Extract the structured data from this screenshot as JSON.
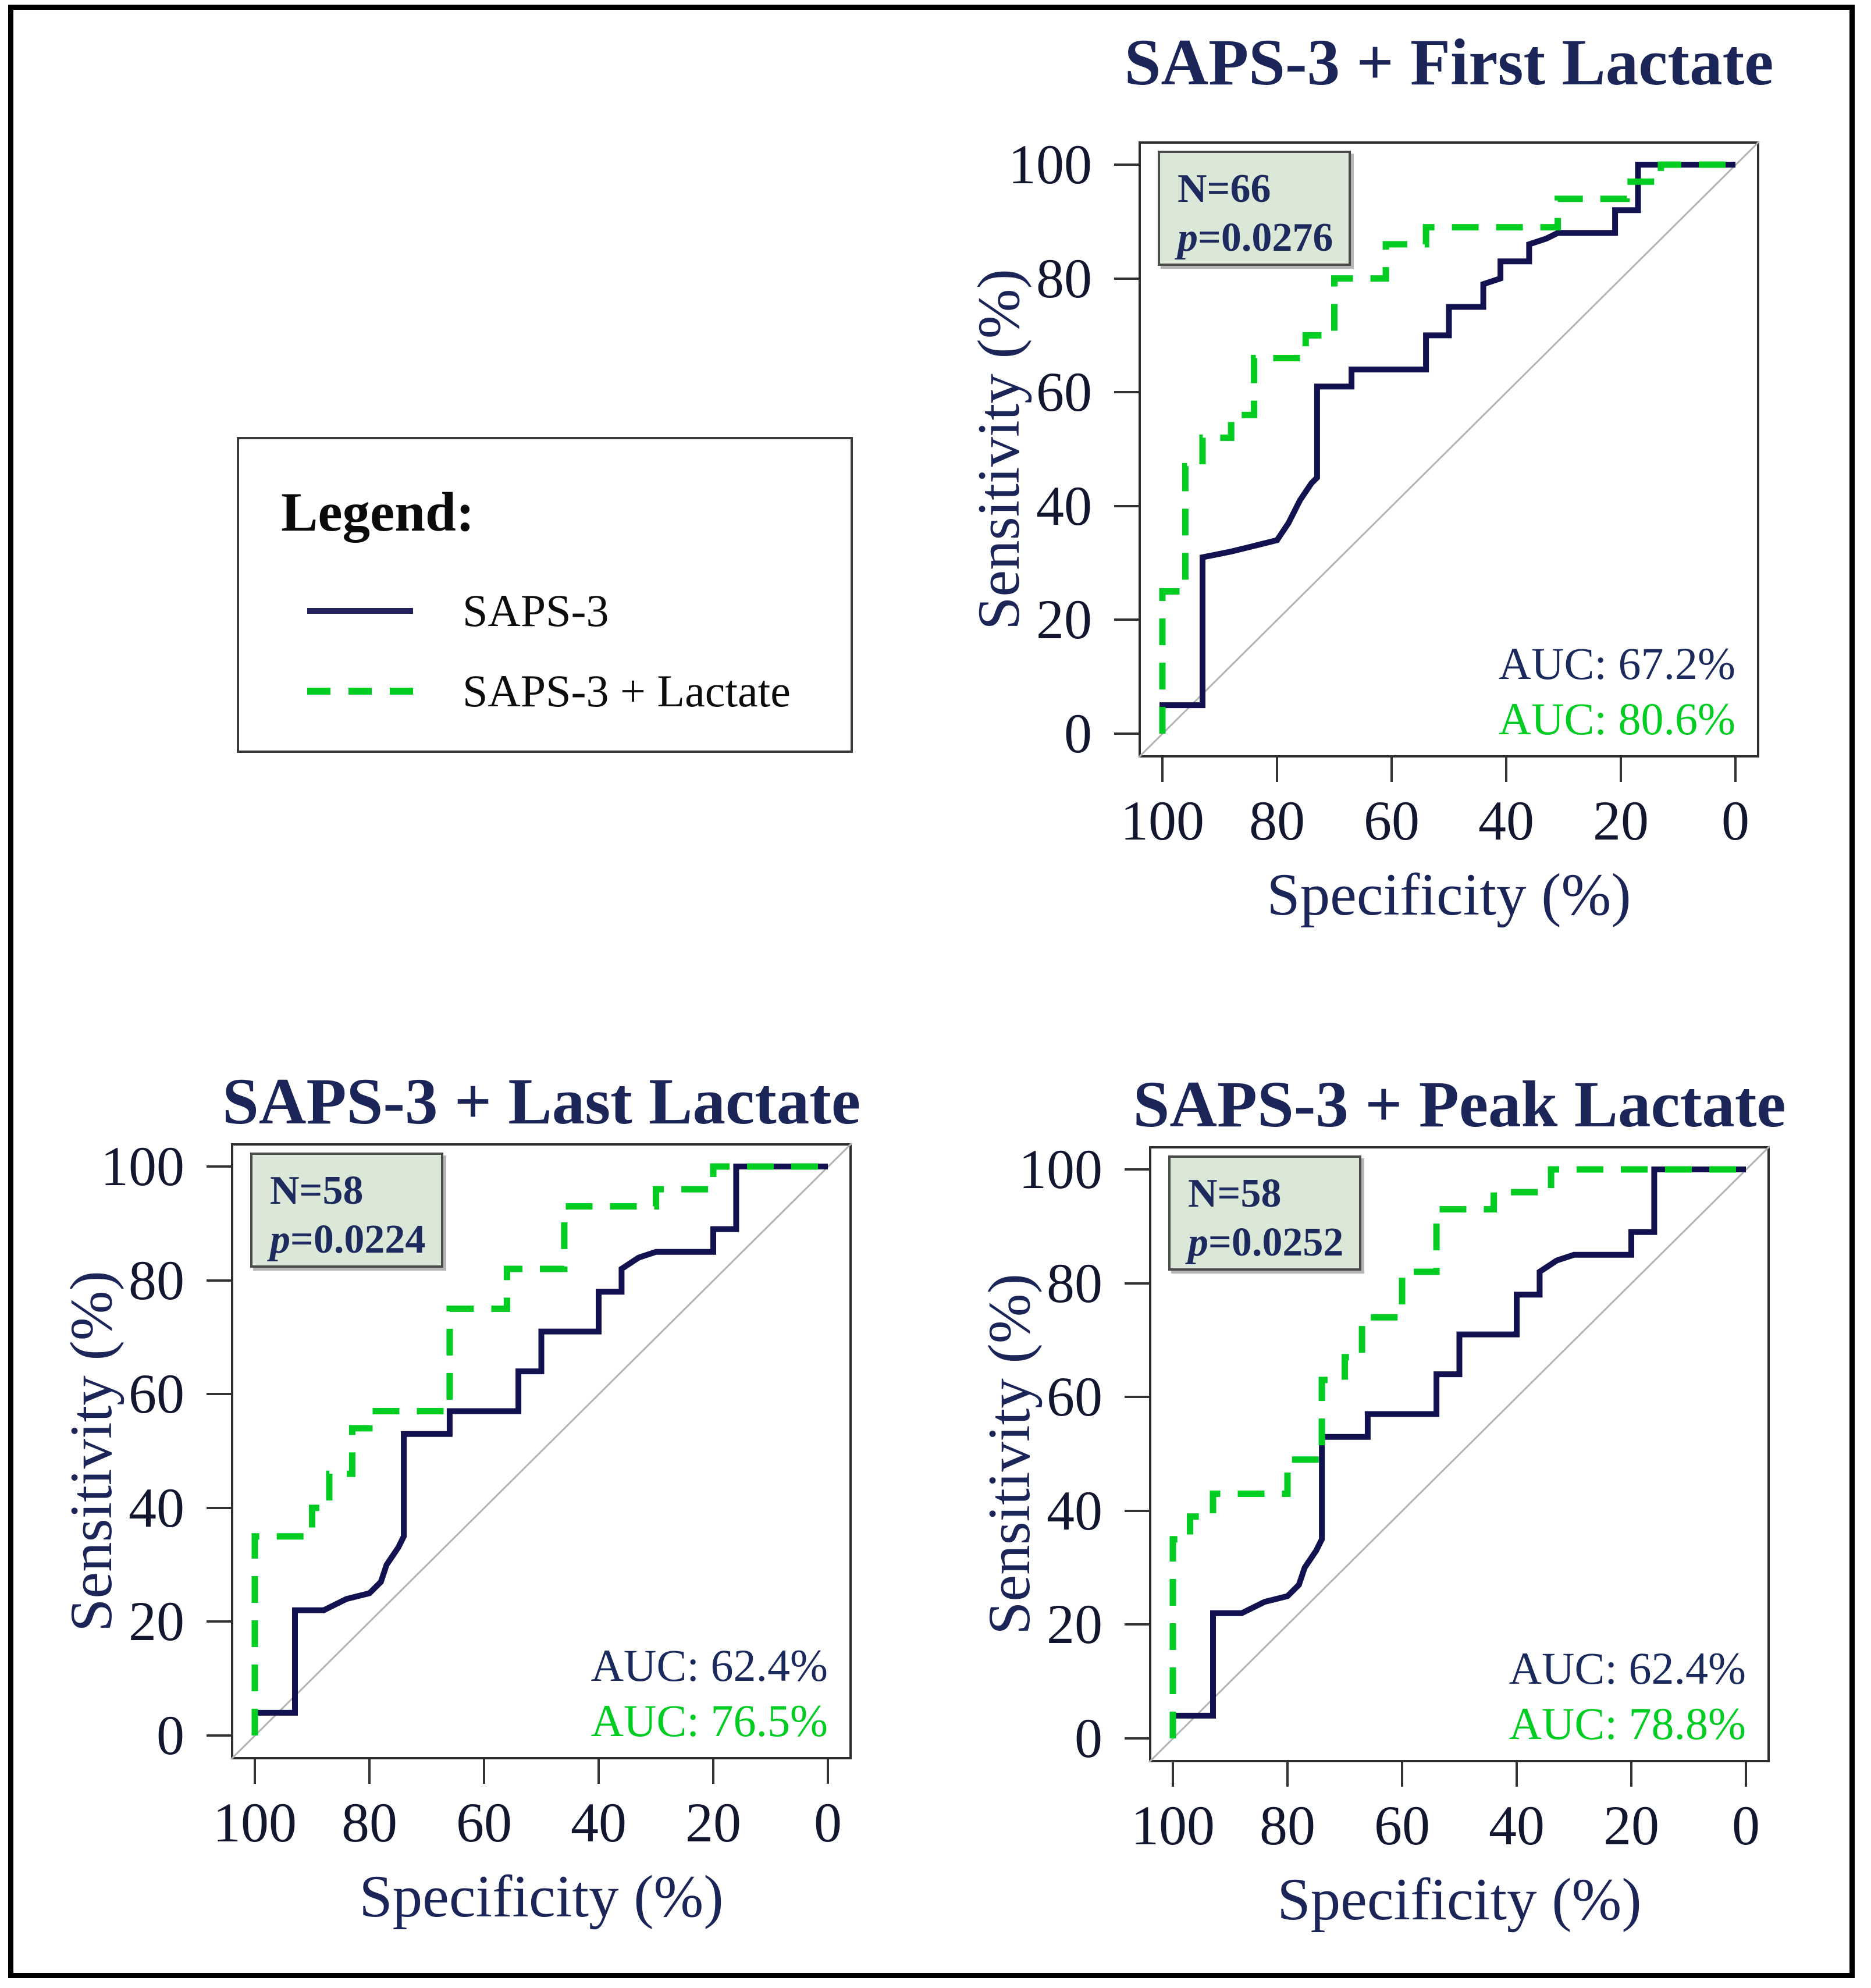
{
  "axes": {
    "x_label": "Specificity (%)",
    "y_label": "Sensitivity (%)",
    "x_ticks": [
      "100",
      "80",
      "60",
      "40",
      "20",
      "0"
    ],
    "y_ticks": [
      "0",
      "20",
      "40",
      "60",
      "80",
      "100"
    ],
    "x_range": [
      100,
      0
    ],
    "y_range": [
      0,
      100
    ],
    "x_orientation": "reversed, 100 at left",
    "grid": false,
    "diagonal_reference_line": true
  },
  "legend": {
    "title": "Legend:",
    "items": [
      {
        "label": "SAPS-3",
        "line": "solid",
        "color": "#121250"
      },
      {
        "label": "SAPS-3 + Lactate",
        "line": "dashed",
        "color": "#00cc22"
      }
    ]
  },
  "colors": {
    "saps3_line": "#121250",
    "lactate_line": "#00cc22",
    "title_text": "#1b2558",
    "tick_text": "#12162f",
    "stats_box_fill": "#dce8d7",
    "stats_box_border": "#4b4b4b",
    "stats_text": "#1c2a5e",
    "diagonal": "#b3b3b3",
    "plot_border": "#2e2e2e",
    "figure_border": "#000000"
  },
  "chart_data": [
    {
      "type": "line",
      "title": "SAPS-3 + First Lactate",
      "n_label": "N=66",
      "p_label": "p",
      "p_value": "=0.0276",
      "xlabel": "Specificity (%)",
      "ylabel": "Sensitivity (%)",
      "auc": [
        {
          "name": "SAPS-3",
          "label": "AUC: 67.2%",
          "color": "#1b2a5c"
        },
        {
          "name": "SAPS-3 + Lactate",
          "label": "AUC: 80.6%",
          "color": "#00cc22"
        }
      ],
      "series": [
        {
          "name": "SAPS-3",
          "style": "solid",
          "points": [
            [
              100,
              0
            ],
            [
              100,
              5
            ],
            [
              93,
              5
            ],
            [
              93,
              31
            ],
            [
              88,
              32
            ],
            [
              84,
              33
            ],
            [
              80,
              34
            ],
            [
              78,
              37
            ],
            [
              76,
              41
            ],
            [
              74,
              44
            ],
            [
              73,
              45
            ],
            [
              73,
              61
            ],
            [
              67,
              61
            ],
            [
              67,
              64
            ],
            [
              54,
              64
            ],
            [
              54,
              70
            ],
            [
              50,
              70
            ],
            [
              50,
              75
            ],
            [
              44,
              75
            ],
            [
              44,
              79
            ],
            [
              41,
              80
            ],
            [
              41,
              83
            ],
            [
              36,
              83
            ],
            [
              36,
              86
            ],
            [
              33,
              87
            ],
            [
              31,
              88
            ],
            [
              21,
              88
            ],
            [
              21,
              92
            ],
            [
              17,
              92
            ],
            [
              17,
              100
            ],
            [
              0,
              100
            ]
          ]
        },
        {
          "name": "SAPS-3 + Lactate",
          "style": "dashed",
          "points": [
            [
              100,
              0
            ],
            [
              100,
              25
            ],
            [
              96,
              25
            ],
            [
              96,
              47
            ],
            [
              93,
              47
            ],
            [
              93,
              52
            ],
            [
              88,
              52
            ],
            [
              88,
              56
            ],
            [
              84,
              56
            ],
            [
              84,
              66
            ],
            [
              75,
              66
            ],
            [
              75,
              70
            ],
            [
              70,
              70
            ],
            [
              70,
              80
            ],
            [
              61,
              80
            ],
            [
              61,
              86
            ],
            [
              54,
              86
            ],
            [
              54,
              89
            ],
            [
              31,
              89
            ],
            [
              31,
              94
            ],
            [
              19,
              94
            ],
            [
              19,
              97
            ],
            [
              13,
              97
            ],
            [
              13,
              100
            ],
            [
              0,
              100
            ]
          ]
        }
      ]
    },
    {
      "type": "line",
      "title": "SAPS-3 + Last Lactate",
      "n_label": "N=58",
      "p_label": "p",
      "p_value": "=0.0224",
      "xlabel": "Specificity (%)",
      "ylabel": "Sensitivity (%)",
      "auc": [
        {
          "name": "SAPS-3",
          "label": "AUC: 62.4%",
          "color": "#1b2a5c"
        },
        {
          "name": "SAPS-3 + Lactate",
          "label": "AUC: 76.5%",
          "color": "#00cc22"
        }
      ],
      "series": [
        {
          "name": "SAPS-3",
          "style": "solid",
          "points": [
            [
              100,
              0
            ],
            [
              100,
              4
            ],
            [
              93,
              4
            ],
            [
              93,
              22
            ],
            [
              88,
              22
            ],
            [
              84,
              24
            ],
            [
              80,
              25
            ],
            [
              78,
              27
            ],
            [
              77,
              30
            ],
            [
              75,
              33
            ],
            [
              74,
              35
            ],
            [
              74,
              53
            ],
            [
              66,
              53
            ],
            [
              66,
              57
            ],
            [
              54,
              57
            ],
            [
              54,
              64
            ],
            [
              50,
              64
            ],
            [
              50,
              71
            ],
            [
              40,
              71
            ],
            [
              40,
              78
            ],
            [
              36,
              78
            ],
            [
              36,
              82
            ],
            [
              33,
              84
            ],
            [
              30,
              85
            ],
            [
              20,
              85
            ],
            [
              20,
              89
            ],
            [
              16,
              89
            ],
            [
              16,
              100
            ],
            [
              0,
              100
            ]
          ]
        },
        {
          "name": "SAPS-3 + Lactate",
          "style": "dashed",
          "points": [
            [
              100,
              0
            ],
            [
              100,
              35
            ],
            [
              90,
              35
            ],
            [
              90,
              40
            ],
            [
              87,
              40
            ],
            [
              87,
              46
            ],
            [
              83,
              46
            ],
            [
              83,
              54
            ],
            [
              80,
              54
            ],
            [
              80,
              57
            ],
            [
              66,
              57
            ],
            [
              66,
              75
            ],
            [
              56,
              75
            ],
            [
              56,
              82
            ],
            [
              46,
              82
            ],
            [
              46,
              93
            ],
            [
              30,
              93
            ],
            [
              30,
              96
            ],
            [
              20,
              96
            ],
            [
              20,
              100
            ],
            [
              0,
              100
            ]
          ]
        }
      ]
    },
    {
      "type": "line",
      "title": "SAPS-3 + Peak Lactate",
      "n_label": "N=58",
      "p_label": "p",
      "p_value": "=0.0252",
      "xlabel": "Specificity (%)",
      "ylabel": "Sensitivity (%)",
      "auc": [
        {
          "name": "SAPS-3",
          "label": "AUC: 62.4%",
          "color": "#1b2a5c"
        },
        {
          "name": "SAPS-3 + Lactate",
          "label": "AUC: 78.8%",
          "color": "#00cc22"
        }
      ],
      "series": [
        {
          "name": "SAPS-3",
          "style": "solid",
          "points": [
            [
              100,
              0
            ],
            [
              100,
              4
            ],
            [
              93,
              4
            ],
            [
              93,
              22
            ],
            [
              88,
              22
            ],
            [
              84,
              24
            ],
            [
              80,
              25
            ],
            [
              78,
              27
            ],
            [
              77,
              30
            ],
            [
              75,
              33
            ],
            [
              74,
              35
            ],
            [
              74,
              53
            ],
            [
              66,
              53
            ],
            [
              66,
              57
            ],
            [
              54,
              57
            ],
            [
              54,
              64
            ],
            [
              50,
              64
            ],
            [
              50,
              71
            ],
            [
              40,
              71
            ],
            [
              40,
              78
            ],
            [
              36,
              78
            ],
            [
              36,
              82
            ],
            [
              33,
              84
            ],
            [
              30,
              85
            ],
            [
              20,
              85
            ],
            [
              20,
              89
            ],
            [
              16,
              89
            ],
            [
              16,
              100
            ],
            [
              0,
              100
            ]
          ]
        },
        {
          "name": "SAPS-3 + Lactate",
          "style": "dashed",
          "points": [
            [
              100,
              0
            ],
            [
              100,
              35
            ],
            [
              97,
              35
            ],
            [
              97,
              39
            ],
            [
              93,
              39
            ],
            [
              93,
              43
            ],
            [
              80,
              43
            ],
            [
              80,
              49
            ],
            [
              74,
              49
            ],
            [
              74,
              63
            ],
            [
              70,
              63
            ],
            [
              70,
              67
            ],
            [
              67,
              67
            ],
            [
              67,
              74
            ],
            [
              60,
              74
            ],
            [
              60,
              82
            ],
            [
              54,
              82
            ],
            [
              54,
              93
            ],
            [
              44,
              93
            ],
            [
              44,
              96
            ],
            [
              34,
              96
            ],
            [
              34,
              100
            ],
            [
              0,
              100
            ]
          ]
        }
      ]
    }
  ]
}
